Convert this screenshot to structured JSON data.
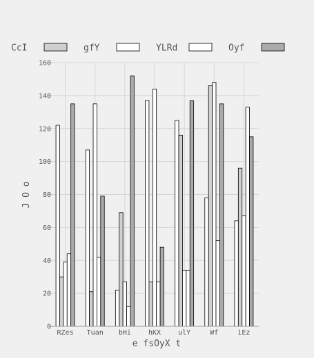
{
  "chart_data": {
    "type": "bar",
    "title": "",
    "xlabel": "e fsOyX t",
    "ylabel": "J O o",
    "ylim": [
      0,
      160
    ],
    "yticks": [
      0,
      20,
      40,
      60,
      80,
      100,
      120,
      140,
      160
    ],
    "grid": true,
    "legend_position": "top",
    "categories": [
      "RZes",
      "Tuan",
      "bHi",
      "hKX",
      "ulY",
      "Wf",
      "iEz"
    ],
    "series": [
      {
        "name": "CcI",
        "color": "#ffffff",
        "values": [
          122,
          107,
          22,
          137,
          125,
          78,
          64
        ]
      },
      {
        "name": "gfY",
        "color": "#d0d0d0",
        "values": [
          30,
          21,
          69,
          27,
          116,
          146,
          96
        ]
      },
      {
        "name": "YLRd",
        "color": "#ffffff",
        "values": [
          39,
          135,
          27,
          144,
          34,
          148,
          67
        ]
      },
      {
        "name": "Oyf",
        "color": "#ffffff",
        "values": [
          44,
          42,
          12,
          27,
          34,
          52,
          133
        ]
      },
      {
        "name": "",
        "color": "#aaaaaa",
        "values": [
          135,
          79,
          152,
          48,
          137,
          135,
          115
        ]
      }
    ]
  }
}
